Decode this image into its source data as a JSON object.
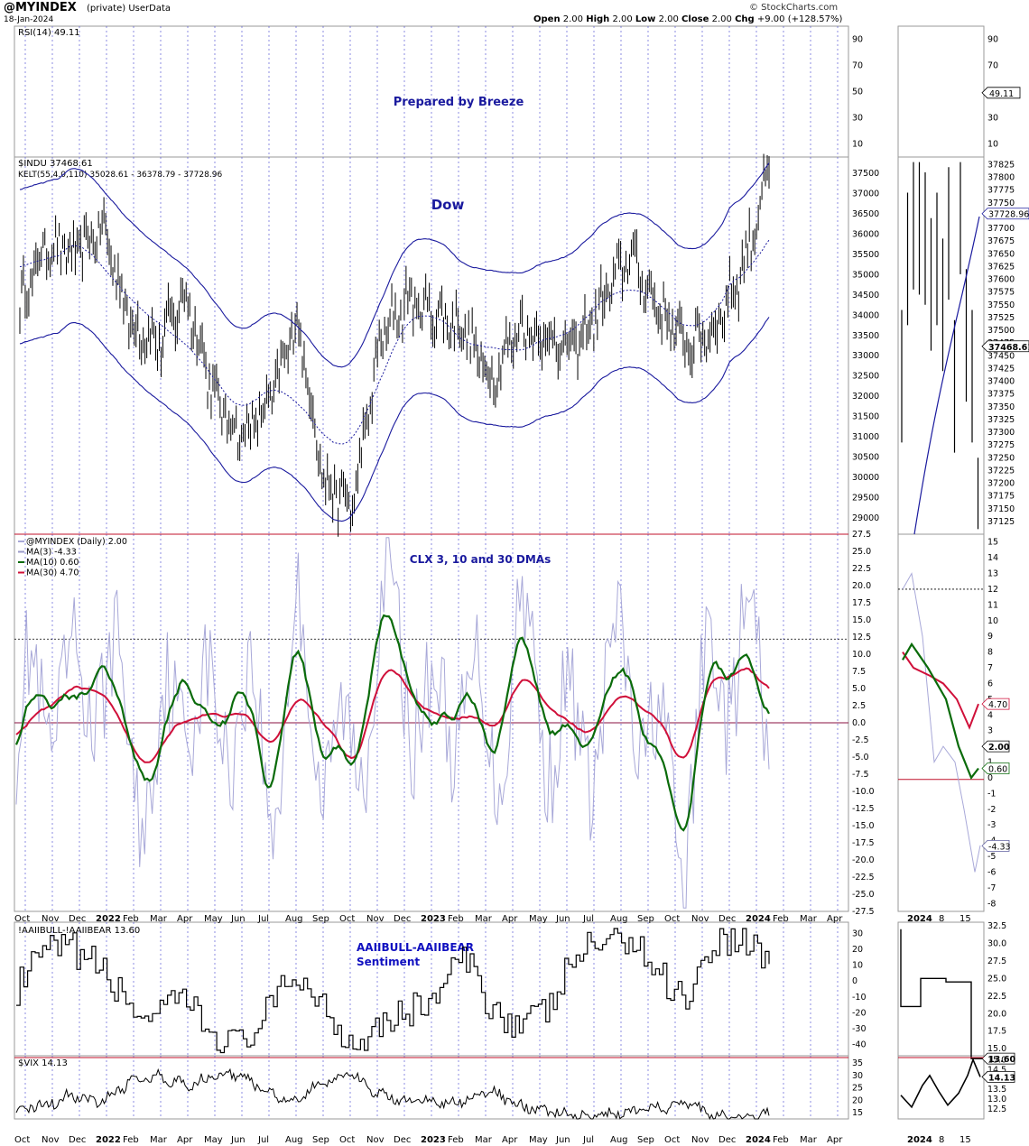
{
  "header": {
    "symbol": "@MYINDEX",
    "subtitle": "(private)  UserData",
    "date": "18-Jan-2024",
    "brand": "© StockCharts.com",
    "ohlc": {
      "open_label": "Open",
      "open": "2.00",
      "high_label": "High",
      "high": "2.00",
      "low_label": "Low",
      "low": "2.00",
      "close_label": "Close",
      "close": "2.00",
      "chg_label": "Chg",
      "chg": "+9.00 (+128.57%)"
    }
  },
  "colors": {
    "navy": "#1a1a9e",
    "green": "#0a6b0a",
    "crimson": "#d0103a",
    "lavender": "#a8a8d8",
    "red_line": "#c0102a",
    "grid_dash": "#4040d0"
  },
  "chart_data": [
    {
      "type": "line",
      "panel": "rsi",
      "title": "Prepared by Breeze",
      "legend": [
        "RSI(14) 49.11"
      ],
      "ylim": [
        0,
        100
      ],
      "yticks": [
        10,
        30,
        50,
        70,
        90
      ],
      "last_value_tag": "49.11"
    },
    {
      "type": "candlestick",
      "panel": "dow",
      "title": "Dow",
      "legend": [
        "$INDU 37468.61",
        "KELT(55,4.0,110) 35028.61 - 36378.79 - 37728.96"
      ],
      "ylim": [
        28600,
        37900
      ],
      "yticks": [
        29000,
        29500,
        30000,
        30500,
        31000,
        31500,
        32000,
        32500,
        33000,
        33500,
        34000,
        34500,
        35000,
        35500,
        36000,
        36500,
        37000,
        37500
      ],
      "zoom_ylim": [
        37100,
        37840
      ],
      "zoom_yticks": [
        37125,
        37150,
        37175,
        37200,
        37225,
        37250,
        37275,
        37300,
        37325,
        37350,
        37375,
        37400,
        37425,
        37450,
        37475,
        37500,
        37525,
        37550,
        37575,
        37600,
        37625,
        37650,
        37675,
        37700,
        37725,
        37750,
        37775,
        37800,
        37825
      ],
      "price_months": [
        "2021-10",
        "2021-11",
        "2021-12",
        "2022-01",
        "2022-02",
        "2022-03",
        "2022-04",
        "2022-05",
        "2022-06",
        "2022-07",
        "2022-08",
        "2022-09",
        "2022-10",
        "2022-11",
        "2022-12",
        "2023-01",
        "2023-02",
        "2023-03",
        "2023-04",
        "2023-05",
        "2023-06",
        "2023-07",
        "2023-08",
        "2023-09",
        "2023-10",
        "2023-11",
        "2023-12",
        "2024-01"
      ],
      "price_close": [
        34200,
        35800,
        35500,
        36200,
        33800,
        33300,
        34500,
        32000,
        31000,
        31800,
        33900,
        29800,
        29300,
        33400,
        34400,
        34000,
        33700,
        32400,
        33700,
        33400,
        33200,
        34300,
        35500,
        34200,
        33300,
        33600,
        35100,
        37500
      ],
      "kelt_upper_tag": "37728.96",
      "last_value_tag": "37468.61"
    },
    {
      "type": "line",
      "panel": "clx",
      "title": "CLX 3, 10 and 30 DMAs",
      "ylim": [
        -27.5,
        27.5
      ],
      "yticks": [
        -27.5,
        -25,
        -22.5,
        -20,
        -17.5,
        -15,
        -12.5,
        -10,
        -7.5,
        -5,
        -2.5,
        0,
        2.5,
        5,
        7.5,
        10,
        12.5,
        15,
        17.5,
        20,
        22.5,
        25,
        27.5
      ],
      "zoom_ylim": [
        -8.5,
        15.5
      ],
      "zoom_yticks": [
        -8,
        -7,
        -6,
        -5,
        -4,
        -3,
        -2,
        -1,
        0,
        1,
        2,
        3,
        4,
        5,
        6,
        7,
        8,
        9,
        10,
        11,
        12,
        13,
        14,
        15
      ],
      "series": [
        {
          "name": "@MYINDEX (Daily) 2.00",
          "color": "#a8a8d8",
          "last": "2.00"
        },
        {
          "name": "MA(3) -4.33",
          "color": "#9a9ac8",
          "last": "-4.33"
        },
        {
          "name": "MA(10) 0.60",
          "color": "#0a6b0a",
          "last": "0.60"
        },
        {
          "name": "MA(30) 4.70",
          "color": "#d0103a",
          "last": "4.70"
        }
      ],
      "ma10": [
        -4,
        6,
        1,
        10,
        -2,
        -9,
        9,
        -3,
        6,
        -10,
        10,
        -2,
        -9,
        15,
        9,
        -3,
        7,
        -6,
        12,
        2,
        -5,
        2,
        8,
        -6,
        -14,
        8,
        10,
        0.6
      ],
      "ma30": [
        -3,
        3,
        4,
        6,
        -3,
        -6,
        2,
        0,
        2,
        -4,
        3,
        2,
        -8,
        7,
        6,
        0,
        2,
        -2,
        6,
        4,
        -2,
        0,
        5,
        0,
        -6,
        7,
        8,
        4.7
      ],
      "hline_dotted": 12.2,
      "hline_zero": 0,
      "zoom_hline_dotted": 12,
      "zoom_hline_red": -0.1
    },
    {
      "type": "line",
      "panel": "aaii",
      "title": "AAIIBULL-AAIIBEAR Sentiment",
      "legend": [
        "!AAIIBULL-!AAIIBEAR 13.60"
      ],
      "ylim": [
        -47,
        37
      ],
      "yticks": [
        -40,
        -30,
        -20,
        -10,
        0,
        10,
        20,
        30
      ],
      "zoom_ylim": [
        14,
        33
      ],
      "zoom_yticks": [
        15.0,
        17.5,
        20.0,
        22.5,
        25.0,
        27.5,
        30.0,
        32.5
      ],
      "values": [
        -5,
        18,
        20,
        8,
        -15,
        -25,
        -10,
        -35,
        -40,
        -20,
        5,
        -15,
        -40,
        -25,
        -20,
        -10,
        15,
        -15,
        -28,
        -20,
        15,
        26,
        28,
        5,
        -10,
        25,
        28,
        13.6
      ],
      "last_value_tag": "13.60"
    },
    {
      "type": "line",
      "panel": "vix",
      "legend": [
        "$VIX 14.13"
      ],
      "ylim": [
        12.5,
        38
      ],
      "yticks": [
        15,
        20,
        25,
        30,
        35
      ],
      "zoom_ylim": [
        12,
        15.2
      ],
      "zoom_yticks": [
        12.5,
        13.0,
        13.5,
        14.0,
        14.5,
        15.0
      ],
      "values": [
        17,
        18,
        22,
        19,
        27,
        30,
        26,
        29,
        31,
        23,
        20,
        27,
        31,
        22,
        20,
        19,
        20,
        24,
        18,
        16,
        14,
        14,
        15,
        17,
        19,
        14,
        12.5,
        14.13
      ],
      "last_value_tag": "14.13"
    }
  ],
  "x_axis": {
    "labels": [
      "Oct",
      "Nov",
      "Dec",
      "2022",
      "Feb",
      "Mar",
      "Apr",
      "May",
      "Jun",
      "Jul",
      "Aug",
      "Sep",
      "Oct",
      "Nov",
      "Dec",
      "2023",
      "Feb",
      "Mar",
      "Apr",
      "May",
      "Jun",
      "Jul",
      "Aug",
      "Sep",
      "Oct",
      "Nov",
      "Dec",
      "2024",
      "Feb",
      "Mar",
      "Apr"
    ],
    "bold": [
      "2022",
      "2023",
      "2024"
    ],
    "zoom_labels": [
      "2024",
      "8",
      "15"
    ]
  }
}
